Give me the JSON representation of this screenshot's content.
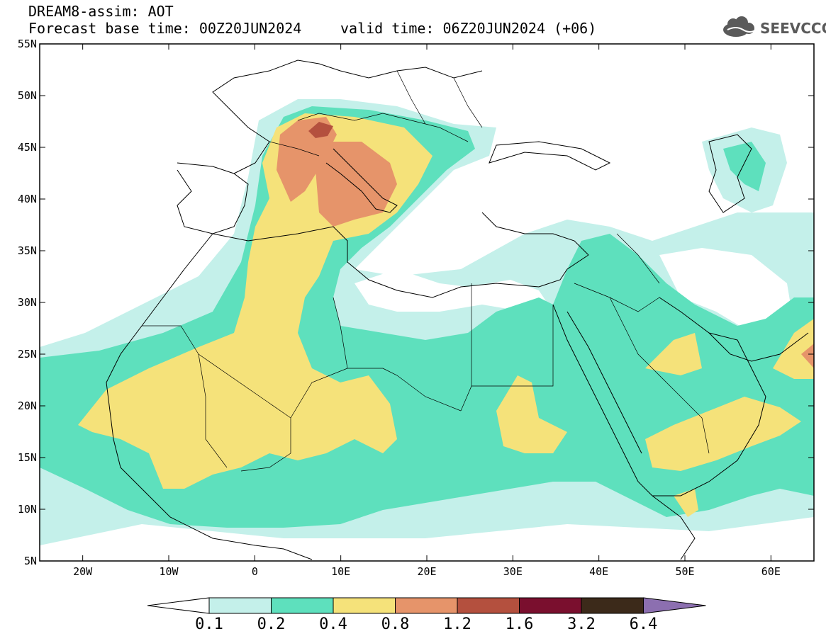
{
  "header": {
    "line1": "DREAM8-assim: AOT",
    "line2": "Forecast base time: 00Z20JUN2024",
    "valid": "valid time: 06Z20JUN2024 (+06)"
  },
  "logo": {
    "text": "SEEVCCC",
    "icon": "cloud-icon"
  },
  "map": {
    "lat_labels": [
      "55N",
      "50N",
      "45N",
      "40N",
      "35N",
      "30N",
      "25N",
      "20N",
      "15N",
      "10N",
      "5N"
    ],
    "lon_labels": [
      "20W",
      "10W",
      "0",
      "10E",
      "20E",
      "30E",
      "40E",
      "50E",
      "60E"
    ],
    "lat_range": [
      5,
      55
    ],
    "lon_range": [
      -25,
      65
    ]
  },
  "colorbar": {
    "levels": [
      "0.1",
      "0.2",
      "0.4",
      "0.8",
      "1.2",
      "1.6",
      "3.2",
      "6.4"
    ],
    "colors": [
      "#c4f0ea",
      "#5ee0bd",
      "#f5e27a",
      "#e6946a",
      "#b4503e",
      "#7a0f2e",
      "#3c2a1a",
      "#8c6fb0"
    ]
  }
}
